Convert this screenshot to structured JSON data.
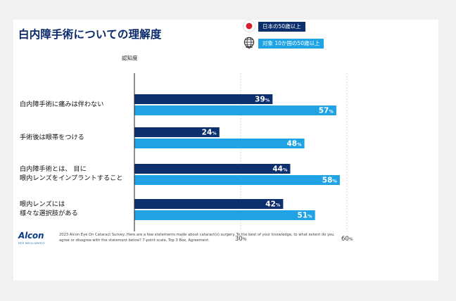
{
  "title": "白内障手術についての理解度",
  "legend": [
    {
      "label": "日本の50歳以上",
      "icon": "japan-flag-icon",
      "color": "#0c2f6e"
    },
    {
      "label": "対象 10か国の50歳以上",
      "icon": "globe-icon",
      "color": "#1fa3e5"
    }
  ],
  "footnote": "2023 Alcon Eye On Cataract Survey: Here are a few statements made about cataract(s) surgery. To the best of your knowledge, to what extent do you agree or disagree with the statement below? 7-point scale, Top 3 Box, Agreement.",
  "logo": {
    "name": "Alcon",
    "tagline": "SEE BRILLIANTLY"
  },
  "chart_data": {
    "type": "bar",
    "orientation": "horizontal",
    "ylabel": "認知度",
    "xlim": [
      0,
      60
    ],
    "xticks": [
      {
        "value": 30,
        "label": "30",
        "unit": "%"
      },
      {
        "value": 60,
        "label": "60",
        "unit": "%"
      }
    ],
    "grid": "dashed vertical at 30 and 60",
    "value_unit": "%",
    "categories": [
      [
        "白内障手術に痛みは伴わない"
      ],
      [
        "手術後は眼帯をつける"
      ],
      [
        "白内障手術とは、 目に",
        "眼内レンズをインプラントすること"
      ],
      [
        "眼内レンズには",
        "様々な選択肢がある"
      ]
    ],
    "series": [
      {
        "name": "日本の50歳以上",
        "color": "#0c2f6e",
        "values": [
          39,
          24,
          44,
          42
        ]
      },
      {
        "name": "対象 10か国の50歳以上",
        "color": "#1fa3e5",
        "values": [
          57,
          48,
          58,
          51
        ]
      }
    ]
  }
}
